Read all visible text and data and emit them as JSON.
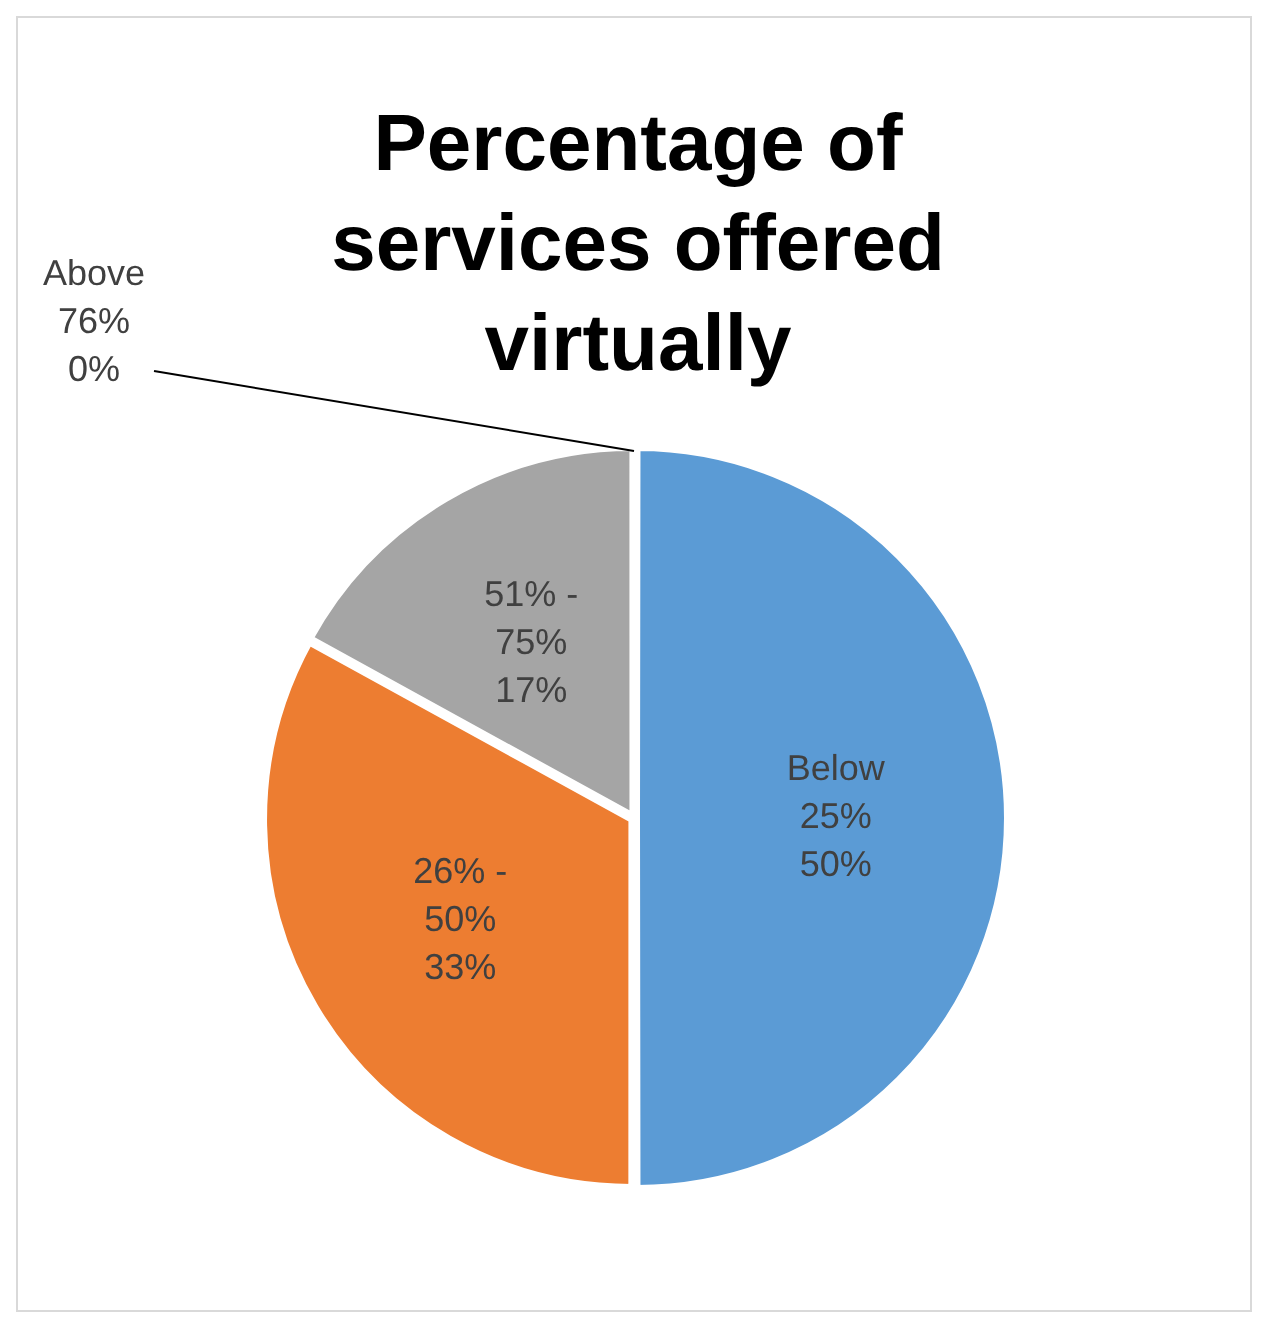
{
  "chart_data": {
    "type": "pie",
    "title": "Percentage of services offered virtually",
    "categories": [
      "Below 25%",
      "26% - 50%",
      "51% - 75%",
      "Above 76%"
    ],
    "values": [
      50,
      33,
      17,
      0
    ],
    "value_labels": [
      "50%",
      "33%",
      "17%",
      "0%"
    ],
    "colors": [
      "#5b9bd5",
      "#ed7d31",
      "#a5a5a5",
      "#ffc000"
    ],
    "legend": false
  }
}
